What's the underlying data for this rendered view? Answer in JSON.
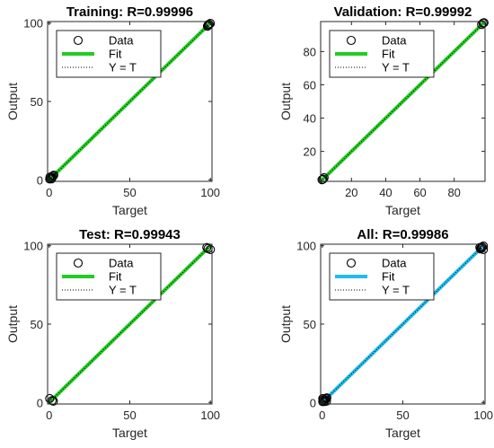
{
  "chart_data": [
    {
      "type": "scatter",
      "title": "Training: R=0.99996",
      "xlabel": "Target",
      "ylabel": "Output",
      "xlim": [
        -1,
        101
      ],
      "ylim": [
        -1,
        101
      ],
      "xticks": [
        0,
        50,
        100
      ],
      "yticks": [
        0,
        50,
        100
      ],
      "fit_color": "#22cc22",
      "legend": {
        "position": "top-left",
        "entries": [
          "Data",
          "Fit",
          "Y = T"
        ]
      },
      "fit": {
        "x": [
          0,
          100
        ],
        "y": [
          0,
          100
        ]
      },
      "points": [
        [
          0.3,
          0.5
        ],
        [
          0.8,
          0.9
        ],
        [
          1.2,
          1.5
        ],
        [
          1.8,
          1.6
        ],
        [
          2.3,
          2.4
        ],
        [
          0.5,
          1.8
        ],
        [
          1.5,
          0.6
        ],
        [
          2.8,
          2.9
        ],
        [
          98.2,
          98
        ],
        [
          98.8,
          99.1
        ],
        [
          99.3,
          99.2
        ],
        [
          100,
          99.8
        ],
        [
          98.6,
          98.4
        ]
      ]
    },
    {
      "type": "scatter",
      "title": "Validation: R=0.99992",
      "xlabel": "Target",
      "ylabel": "Output",
      "xlim": [
        2,
        98
      ],
      "ylim": [
        2,
        98
      ],
      "xticks": [
        20,
        40,
        60,
        80
      ],
      "yticks": [
        20,
        40,
        60,
        80
      ],
      "fit_color": "#22cc22",
      "legend": {
        "position": "top-left",
        "entries": [
          "Data",
          "Fit",
          "Y = T"
        ]
      },
      "fit": {
        "x": [
          2,
          98
        ],
        "y": [
          2,
          98
        ]
      },
      "points": [
        [
          2.8,
          3
        ],
        [
          3.4,
          3.3
        ],
        [
          4,
          4.2
        ],
        [
          96,
          96.2
        ],
        [
          96.8,
          97
        ],
        [
          97.4,
          97.3
        ]
      ]
    },
    {
      "type": "scatter",
      "title": "Test: R=0.99943",
      "xlabel": "Target",
      "ylabel": "Output",
      "xlim": [
        -1,
        101
      ],
      "ylim": [
        -1,
        101
      ],
      "xticks": [
        0,
        50,
        100
      ],
      "yticks": [
        0,
        50,
        100
      ],
      "fit_color": "#22cc22",
      "legend": {
        "position": "top-left",
        "entries": [
          "Data",
          "Fit",
          "Y = T"
        ]
      },
      "fit": {
        "x": [
          0,
          100
        ],
        "y": [
          0,
          100
        ]
      },
      "points": [
        [
          0.3,
          2.5
        ],
        [
          1.8,
          1.2
        ],
        [
          2.6,
          0.8
        ],
        [
          97.8,
          98.9
        ],
        [
          98.6,
          98.2
        ],
        [
          100,
          97.6
        ]
      ]
    },
    {
      "type": "scatter",
      "title": "All: R=0.99986",
      "xlabel": "Target",
      "ylabel": "Output",
      "xlim": [
        -1,
        101
      ],
      "ylim": [
        -1,
        101
      ],
      "xticks": [
        0,
        50,
        100
      ],
      "yticks": [
        0,
        50,
        100
      ],
      "fit_color": "#22bbee",
      "legend": {
        "position": "top-left",
        "entries": [
          "Data",
          "Fit",
          "Y = T"
        ]
      },
      "fit": {
        "x": [
          0,
          100
        ],
        "y": [
          0,
          100
        ]
      },
      "points": [
        [
          0.3,
          0.5
        ],
        [
          0.8,
          0.9
        ],
        [
          1.2,
          1.5
        ],
        [
          1.8,
          1.6
        ],
        [
          2.3,
          2.4
        ],
        [
          0.5,
          1.8
        ],
        [
          1.5,
          0.6
        ],
        [
          2.8,
          2.9
        ],
        [
          0.3,
          2.5
        ],
        [
          2.6,
          0.8
        ],
        [
          98.2,
          98
        ],
        [
          98.8,
          99.1
        ],
        [
          99.3,
          99.2
        ],
        [
          100,
          99.8
        ],
        [
          98.6,
          98.4
        ],
        [
          97.8,
          98.9
        ],
        [
          100,
          97.6
        ]
      ]
    }
  ]
}
